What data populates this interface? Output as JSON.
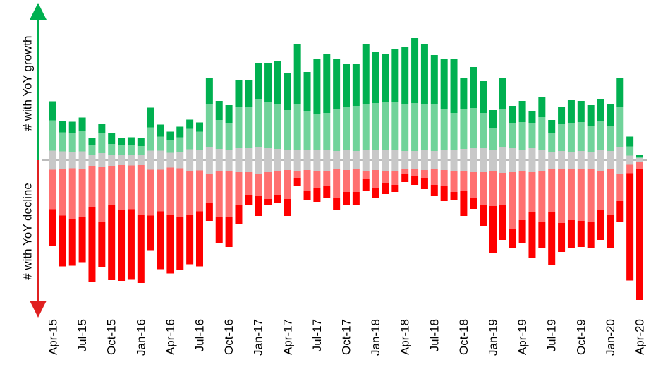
{
  "chart_data": {
    "type": "diverging_bar",
    "axis_labels": {
      "growth": "# with YoY growth",
      "decline": "# with YoY decline"
    },
    "categories": [
      "Apr-15",
      null,
      null,
      "Jul-15",
      null,
      null,
      "Oct-15",
      null,
      null,
      "Jan-16",
      null,
      null,
      "Apr-16",
      null,
      null,
      "Jul-16",
      null,
      null,
      "Oct-16",
      null,
      null,
      "Jan-17",
      null,
      null,
      "Apr-17",
      null,
      null,
      "Jul-17",
      null,
      null,
      "Oct-17",
      null,
      null,
      "Jan-18",
      null,
      null,
      "Apr-18",
      null,
      null,
      "Jul-18",
      null,
      null,
      "Oct-18",
      null,
      null,
      "Jan-19",
      null,
      null,
      "Apr-19",
      null,
      null,
      "Jul-19",
      null,
      null,
      "Oct-19",
      null,
      null,
      "Jan-20",
      null,
      null,
      "Apr-20"
    ],
    "series": [
      {
        "color": "#c8c8c8",
        "direction": "center",
        "values": [
          27,
          25,
          23,
          25,
          16,
          20,
          16,
          14,
          15,
          14,
          27,
          27,
          21,
          23,
          31,
          29,
          38,
          32,
          30,
          34,
          34,
          38,
          34,
          32,
          28,
          30,
          28,
          30,
          30,
          26,
          28,
          26,
          30,
          28,
          30,
          30,
          26,
          26,
          28,
          26,
          28,
          30,
          32,
          34,
          34,
          30,
          36,
          34,
          30,
          34,
          30,
          24,
          26,
          24,
          26,
          24,
          30,
          26,
          38,
          13,
          6
        ]
      },
      {
        "color": "#70d39a",
        "direction": "up",
        "values": [
          43,
          27,
          27,
          29,
          13,
          28,
          15,
          14,
          14,
          13,
          33,
          20,
          18,
          21,
          29,
          26,
          61,
          41,
          37,
          58,
          58,
          68,
          65,
          63,
          57,
          64,
          55,
          51,
          52,
          60,
          61,
          64,
          65,
          67,
          67,
          67,
          66,
          68,
          65,
          66,
          59,
          52,
          57,
          57,
          50,
          30,
          54,
          35,
          39,
          35,
          46,
          27,
          38,
          41,
          41,
          37,
          40,
          35,
          56,
          13,
          2
        ]
      },
      {
        "color": "#00b050",
        "direction": "up",
        "values": [
          27,
          16,
          16,
          19,
          11,
          13,
          15,
          10,
          11,
          11,
          28,
          17,
          12,
          15,
          13,
          13,
          37,
          27,
          26,
          39,
          38,
          51,
          56,
          61,
          53,
          86,
          56,
          78,
          84,
          70,
          62,
          60,
          85,
          73,
          69,
          75,
          81,
          92,
          85,
          70,
          70,
          76,
          44,
          58,
          45,
          26,
          45,
          25,
          30,
          17,
          28,
          18,
          24,
          32,
          30,
          29,
          32,
          31,
          42,
          14,
          3
        ]
      },
      {
        "color": "#ff7070",
        "direction": "down",
        "values": [
          56,
          66,
          72,
          68,
          59,
          77,
          56,
          64,
          62,
          70,
          65,
          59,
          67,
          69,
          62,
          58,
          42,
          65,
          65,
          46,
          32,
          32,
          38,
          33,
          41,
          10,
          29,
          24,
          22,
          40,
          31,
          32,
          12,
          25,
          18,
          20,
          6,
          10,
          11,
          22,
          23,
          30,
          28,
          36,
          46,
          50,
          45,
          81,
          70,
          56,
          73,
          61,
          76,
          73,
          73,
          75,
          55,
          64,
          39,
          12,
          10
        ]
      },
      {
        "color": "#ff0000",
        "direction": "down",
        "values": [
          52,
          72,
          66,
          64,
          105,
          65,
          106,
          100,
          100,
          97,
          49,
          82,
          83,
          75,
          70,
          78,
          25,
          37,
          43,
          28,
          14,
          28,
          8,
          12,
          24,
          12,
          14,
          20,
          16,
          18,
          18,
          18,
          16,
          14,
          15,
          10,
          12,
          12,
          16,
          16,
          21,
          12,
          35,
          16,
          30,
          66,
          50,
          27,
          33,
          65,
          37,
          76,
          41,
          40,
          37,
          38,
          43,
          48,
          30,
          152,
          185
        ]
      }
    ]
  }
}
